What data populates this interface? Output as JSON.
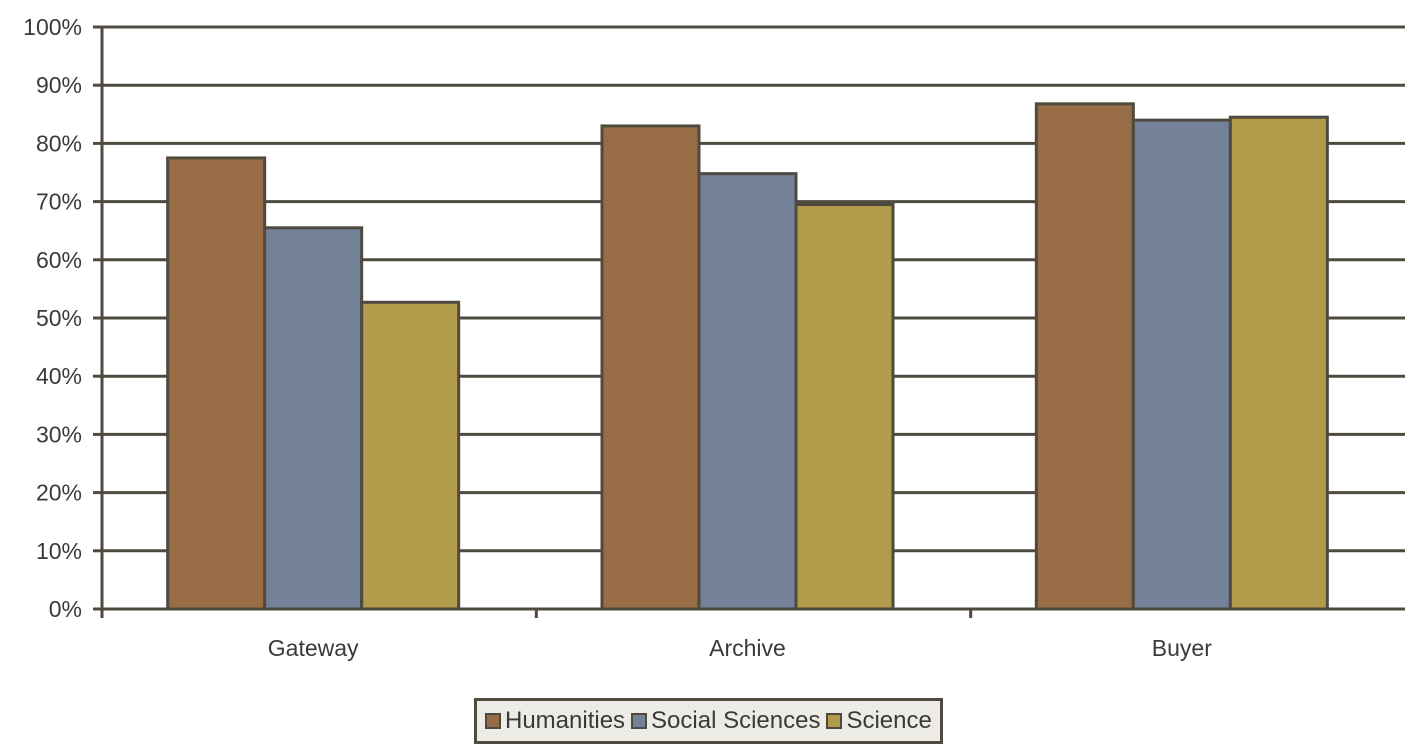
{
  "chart_data": {
    "type": "bar",
    "categories": [
      "Gateway",
      "Archive",
      "Buyer"
    ],
    "series": [
      {
        "name": "Humanities",
        "values": [
          77.5,
          83,
          86.8
        ],
        "color": "#986c45"
      },
      {
        "name": "Social Sciences",
        "values": [
          65.5,
          74.8,
          84
        ],
        "color": "#748299"
      },
      {
        "name": "Science",
        "values": [
          52.7,
          69.5,
          84.5
        ],
        "color": "#b29b4a"
      }
    ],
    "ylim": [
      0,
      100
    ],
    "yticks": [
      "0%",
      "10%",
      "20%",
      "30%",
      "40%",
      "50%",
      "60%",
      "70%",
      "80%",
      "90%",
      "100%"
    ],
    "grid": true,
    "legend_position": "bottom"
  }
}
